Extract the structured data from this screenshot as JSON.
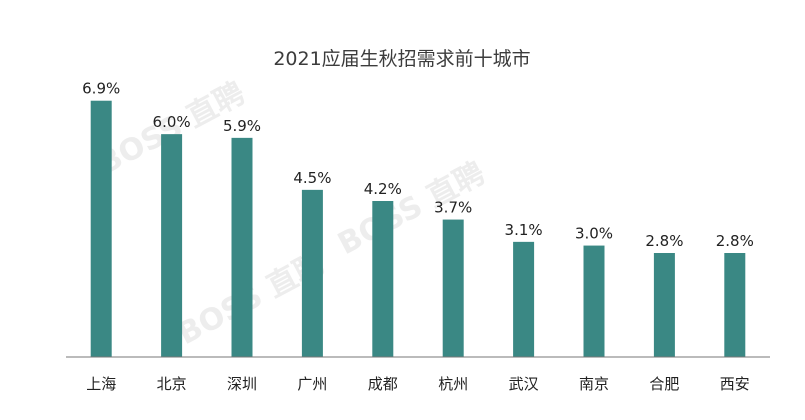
{
  "watermark": "BOSS 直聘",
  "colors": {
    "bar": "#3a8884",
    "axis": "#777777"
  },
  "chart_data": {
    "type": "bar",
    "title": "2021应届生秋招需求前十城市",
    "categories": [
      "上海",
      "北京",
      "深圳",
      "广州",
      "成都",
      "杭州",
      "武汉",
      "南京",
      "合肥",
      "西安"
    ],
    "values": [
      6.9,
      6.0,
      5.9,
      4.5,
      4.2,
      3.7,
      3.1,
      3.0,
      2.8,
      2.8
    ],
    "value_labels": [
      "6.9%",
      "6.0%",
      "5.9%",
      "4.5%",
      "4.2%",
      "3.7%",
      "3.1%",
      "3.0%",
      "2.8%",
      "2.8%"
    ],
    "ylim": [
      0,
      7.0
    ],
    "grid": false,
    "legend": "none"
  }
}
